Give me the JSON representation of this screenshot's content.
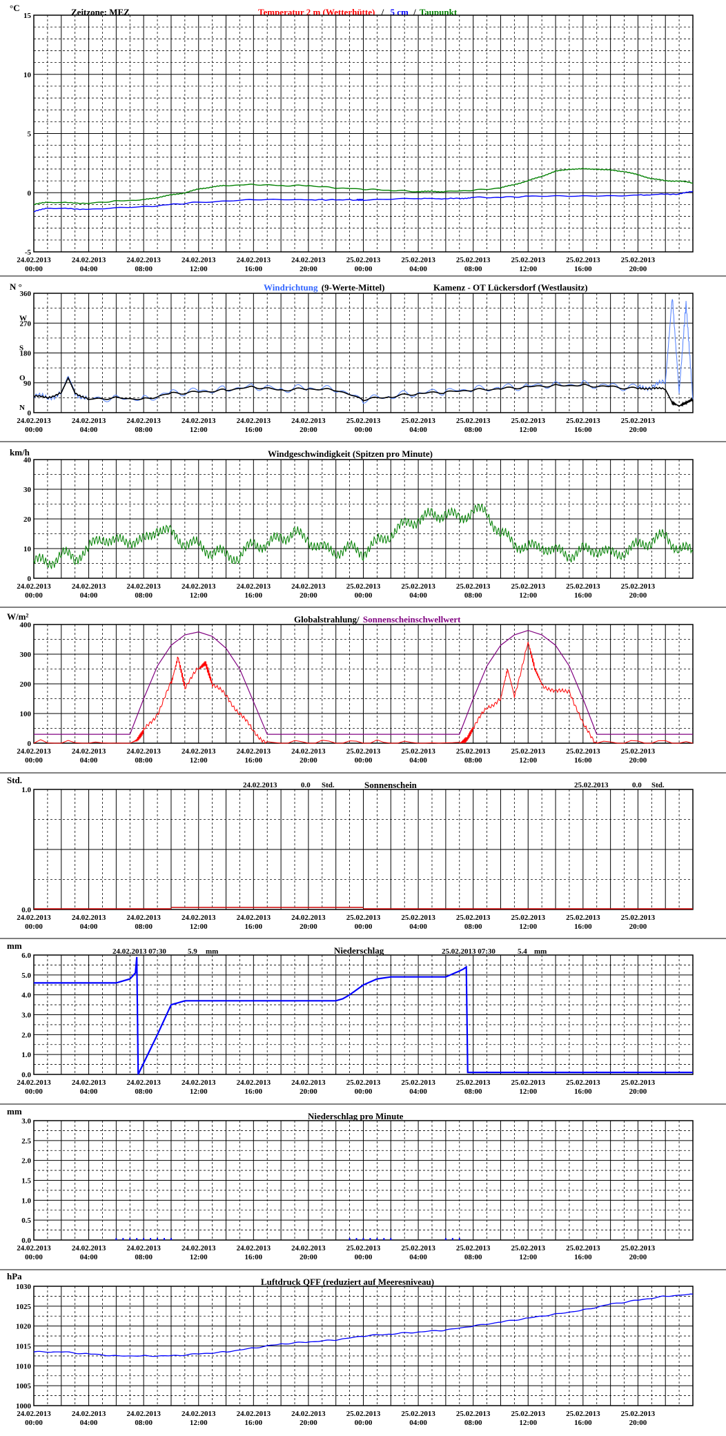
{
  "x_ticks": [
    [
      "24.02.2013",
      "00:00"
    ],
    [
      "24.02.2013",
      "04:00"
    ],
    [
      "24.02.2013",
      "08:00"
    ],
    [
      "24.02.2013",
      "12:00"
    ],
    [
      "24.02.2013",
      "16:00"
    ],
    [
      "24.02.2013",
      "20:00"
    ],
    [
      "25.02.2013",
      "00:00"
    ],
    [
      "25.02.2013",
      "04:00"
    ],
    [
      "25.02.2013",
      "08:00"
    ],
    [
      "25.02.2013",
      "12:00"
    ],
    [
      "25.02.2013",
      "16:00"
    ],
    [
      "25.02.2013",
      "20:00"
    ]
  ],
  "colors": {
    "temp2m": "#ff0000",
    "temp5cm": "#0000ff",
    "dewpoint": "#008000",
    "wind_dir": "#4f7fff",
    "wind_avg": "#000000",
    "wind_speed": "#008000",
    "radiation": "#ff0000",
    "threshold": "#800080",
    "sunshine": "#cc0000",
    "precip": "#0000ff",
    "pressure": "#0000ff",
    "title_blue": "#3366ff"
  },
  "panels": {
    "temperature": {
      "unit": "°C",
      "timezone": "Zeitzone: MEZ",
      "title_temp": "Temperatur 2 m (Wetterhütte)",
      "title_sep": "/",
      "title_5cm": "5 cm",
      "title_sep2": "/",
      "title_dew": "Taupunkt",
      "y_labels": [
        "15",
        "10",
        "5",
        "0",
        "-5"
      ]
    },
    "wind_direction": {
      "unit": "N °",
      "title_dir": "Windrichtung",
      "title_avg": "(9-Werte-Mittel)",
      "station": "Kamenz - OT Lückersdorf (Westlausitz)",
      "y_labels": [
        "360",
        "270",
        "180",
        "90",
        "0"
      ],
      "compass": [
        "W",
        "S",
        "O",
        "N"
      ]
    },
    "wind_speed": {
      "unit": "km/h",
      "title": "Windgeschwindigkeit (Spitzen pro Minute)",
      "y_labels": [
        "40",
        "30",
        "20",
        "10",
        "0"
      ]
    },
    "radiation": {
      "unit": "W/m²",
      "title_glob": "Globalstrahlung/",
      "title_thr": "Sonnenscheinschwellwert",
      "y_labels": [
        "400",
        "300",
        "200",
        "100",
        "0"
      ]
    },
    "sunshine": {
      "unit": "Std.",
      "title": "Sonnenschein",
      "day1_date": "24.02.2013",
      "day1_value": "0.0",
      "day1_unit": "Std.",
      "day2_date": "25.02.2013",
      "day2_value": "0.0",
      "day2_unit": "Std.",
      "y_labels": [
        "1.0",
        "0.0"
      ]
    },
    "precipitation": {
      "unit": "mm",
      "title": "Niederschlag",
      "day1_date": "24.02.2013 07:30",
      "day1_value": "5.9",
      "day1_unit": "mm",
      "day2_date": "25.02.2013 07:30",
      "day2_value": "5.4",
      "day2_unit": "mm",
      "y_labels": [
        "6.0",
        "5.0",
        "4.0",
        "3.0",
        "2.0",
        "1.0",
        "0.0"
      ]
    },
    "precip_minute": {
      "unit": "mm",
      "title": "Niederschlag pro Minute",
      "y_labels": [
        "3.0",
        "2.5",
        "2.0",
        "1.5",
        "1.0",
        "0.5",
        "0.0"
      ]
    },
    "pressure": {
      "unit": "hPa",
      "title": "Luftdruck QFF (reduziert auf Meeresniveau)",
      "y_labels": [
        "1030",
        "1025",
        "1020",
        "1015",
        "1010",
        "1005",
        "1000"
      ]
    }
  },
  "chart_data": [
    {
      "type": "line",
      "name": "temperature",
      "ylim": [
        -5,
        15
      ],
      "x_range_hours": [
        0,
        48
      ],
      "series": [
        {
          "name": "Temperatur 2 m (Wetterhütte)",
          "values": []
        },
        {
          "name": "5 cm",
          "x": [
            0,
            1,
            4,
            8,
            10,
            12,
            16,
            20,
            23.5,
            24,
            28,
            31,
            32,
            34,
            36,
            40,
            44,
            47,
            48
          ],
          "values": [
            -1.6,
            -1.3,
            -1.4,
            -1.2,
            -1.0,
            -0.8,
            -0.6,
            -0.6,
            -0.6,
            -0.6,
            -0.5,
            -0.5,
            -0.4,
            -0.4,
            -0.3,
            -0.3,
            -0.2,
            -0.1,
            0.1
          ]
        },
        {
          "name": "Taupunkt",
          "x": [
            0,
            1,
            4,
            6,
            8,
            9,
            10,
            11,
            12,
            13,
            14,
            16,
            18,
            20,
            22,
            24,
            26,
            28,
            29,
            30,
            32,
            34,
            35,
            36,
            37,
            38,
            39,
            40,
            41,
            42,
            43,
            44,
            45,
            46,
            47,
            48
          ],
          "values": [
            -1.0,
            -0.8,
            -0.9,
            -0.7,
            -0.6,
            -0.4,
            -0.2,
            0.0,
            0.3,
            0.5,
            0.6,
            0.7,
            0.6,
            0.6,
            0.4,
            0.3,
            0.2,
            0.1,
            0.1,
            0.1,
            0.2,
            0.4,
            0.7,
            1.0,
            1.4,
            1.8,
            2.0,
            2.0,
            2.0,
            1.9,
            1.8,
            1.5,
            1.2,
            1.0,
            1.0,
            0.8
          ]
        }
      ]
    },
    {
      "type": "line",
      "name": "wind_direction",
      "ylim": [
        0,
        360
      ],
      "series": [
        {
          "name": "Windrichtung",
          "x": [
            0,
            1,
            2,
            2.5,
            3,
            4,
            6,
            8,
            10,
            12,
            14,
            16,
            18,
            20,
            22,
            24,
            26,
            28,
            30,
            32,
            34,
            36,
            38,
            40,
            42,
            44,
            45,
            46,
            46.5,
            47,
            47.5,
            48
          ],
          "values": [
            50,
            45,
            60,
            110,
            60,
            40,
            45,
            40,
            60,
            65,
            70,
            80,
            70,
            75,
            70,
            40,
            50,
            60,
            65,
            70,
            75,
            80,
            85,
            85,
            80,
            75,
            80,
            90,
            350,
            60,
            330,
            40
          ]
        },
        {
          "name": "(9-Werte-Mittel)",
          "x": [
            0,
            1,
            2,
            2.5,
            3,
            4,
            6,
            8,
            10,
            12,
            14,
            16,
            18,
            20,
            22,
            24,
            26,
            28,
            30,
            32,
            34,
            36,
            38,
            40,
            42,
            44,
            45,
            46,
            46.5,
            47,
            47.5,
            48
          ],
          "values": [
            50,
            45,
            60,
            105,
            60,
            40,
            45,
            40,
            58,
            62,
            68,
            78,
            68,
            72,
            68,
            40,
            48,
            58,
            62,
            68,
            72,
            78,
            82,
            82,
            78,
            72,
            75,
            70,
            30,
            20,
            30,
            40
          ]
        }
      ]
    },
    {
      "type": "line",
      "name": "wind_speed",
      "ylim": [
        0,
        40
      ],
      "series": [
        {
          "name": "Windgeschwindigkeit",
          "x": [
            0,
            1,
            2,
            3,
            4,
            5,
            6,
            7,
            8,
            9,
            10,
            11,
            12,
            13,
            14,
            15,
            16,
            17,
            18,
            19,
            20,
            21,
            22,
            23,
            24,
            25,
            26,
            27,
            28,
            29,
            30,
            31,
            32,
            33,
            34,
            35,
            36,
            37,
            38,
            39,
            40,
            41,
            42,
            43,
            44,
            45,
            46,
            47,
            48
          ],
          "values": [
            6,
            5,
            8,
            7,
            10,
            14,
            12,
            13,
            12,
            17,
            15,
            12,
            11,
            9,
            8,
            7,
            12,
            11,
            14,
            15,
            13,
            10,
            9,
            10,
            9,
            12,
            15,
            18,
            20,
            21,
            22,
            20,
            23,
            22,
            15,
            12,
            10,
            11,
            9,
            8,
            9,
            10,
            8,
            9,
            11,
            13,
            14,
            10,
            9
          ]
        }
      ]
    },
    {
      "type": "line",
      "name": "radiation",
      "ylim": [
        0,
        400
      ],
      "series": [
        {
          "name": "Globalstrahlung",
          "x": [
            0,
            7,
            7.5,
            8,
            9,
            10,
            10.5,
            11,
            12,
            12.5,
            13,
            14,
            15,
            16,
            17,
            24,
            31,
            31.5,
            32,
            33,
            34,
            34.5,
            35,
            36,
            36.5,
            37,
            38,
            39,
            40,
            41,
            48
          ],
          "values": [
            0,
            0,
            10,
            40,
            100,
            200,
            290,
            190,
            250,
            270,
            200,
            160,
            100,
            40,
            0,
            0,
            0,
            10,
            50,
            120,
            150,
            250,
            160,
            340,
            250,
            200,
            170,
            180,
            60,
            0,
            0
          ]
        },
        {
          "name": "Sonnenscheinschwellwert",
          "x": [
            0,
            7,
            8,
            9,
            10,
            11,
            12,
            13,
            14,
            15,
            16,
            17,
            24,
            31,
            32,
            33,
            34,
            35,
            36,
            37,
            38,
            39,
            40,
            41,
            48
          ],
          "values": [
            30,
            30,
            150,
            260,
            330,
            365,
            375,
            360,
            320,
            250,
            140,
            30,
            30,
            30,
            150,
            260,
            330,
            365,
            380,
            365,
            330,
            260,
            150,
            30,
            30
          ]
        }
      ]
    },
    {
      "type": "bar",
      "name": "sunshine",
      "ylim": [
        0,
        1.0
      ],
      "series": [
        {
          "name": "Sonnenschein",
          "x": [
            0,
            10,
            24,
            48
          ],
          "values": [
            0,
            0,
            0,
            0
          ]
        }
      ]
    },
    {
      "type": "line",
      "name": "precipitation",
      "ylim": [
        0,
        6.0
      ],
      "series": [
        {
          "name": "Niederschlag",
          "x": [
            0,
            6,
            7,
            7.4,
            7.5,
            7.6,
            9,
            10,
            11,
            12,
            16,
            20,
            22,
            22.5,
            23,
            24,
            25,
            26,
            28,
            30,
            31,
            31.3,
            31.5,
            31.6,
            36,
            48
          ],
          "values": [
            4.6,
            4.6,
            4.8,
            5.1,
            5.9,
            0.0,
            2.0,
            3.5,
            3.7,
            3.7,
            3.7,
            3.7,
            3.7,
            3.8,
            4.0,
            4.5,
            4.8,
            4.9,
            4.9,
            4.9,
            5.2,
            5.3,
            5.4,
            0.1,
            0.1,
            0.1
          ]
        }
      ]
    },
    {
      "type": "bar",
      "name": "precip_minute",
      "ylim": [
        0,
        3.0
      ],
      "series": [
        {
          "name": "Niederschlag pro Minute",
          "x": [
            6,
            6.5,
            7,
            7.5,
            8,
            8.5,
            9,
            9.5,
            10,
            23,
            23.5,
            24,
            24.5,
            25,
            25.5,
            26,
            30,
            30.5,
            31
          ],
          "values": [
            0.05,
            0.05,
            0.05,
            0.05,
            0.05,
            0.05,
            0.05,
            0.05,
            0.05,
            0.05,
            0.05,
            0.05,
            0.05,
            0.05,
            0.05,
            0.05,
            0.05,
            0.05,
            0.05
          ]
        }
      ]
    },
    {
      "type": "line",
      "name": "pressure",
      "ylim": [
        1000,
        1030
      ],
      "series": [
        {
          "name": "Luftdruck QFF",
          "x": [
            0,
            2,
            4,
            6,
            8,
            10,
            12,
            14,
            16,
            18,
            20,
            22,
            24,
            26,
            28,
            30,
            32,
            34,
            36,
            38,
            40,
            42,
            44,
            46,
            48
          ],
          "values": [
            1013.5,
            1013.5,
            1013,
            1012.5,
            1012.5,
            1012.5,
            1013,
            1013.5,
            1014.5,
            1015.5,
            1016,
            1016.5,
            1017.5,
            1018,
            1018.5,
            1019,
            1020,
            1021,
            1022,
            1023,
            1024,
            1025.5,
            1026.5,
            1027.5,
            1028
          ]
        }
      ]
    }
  ]
}
